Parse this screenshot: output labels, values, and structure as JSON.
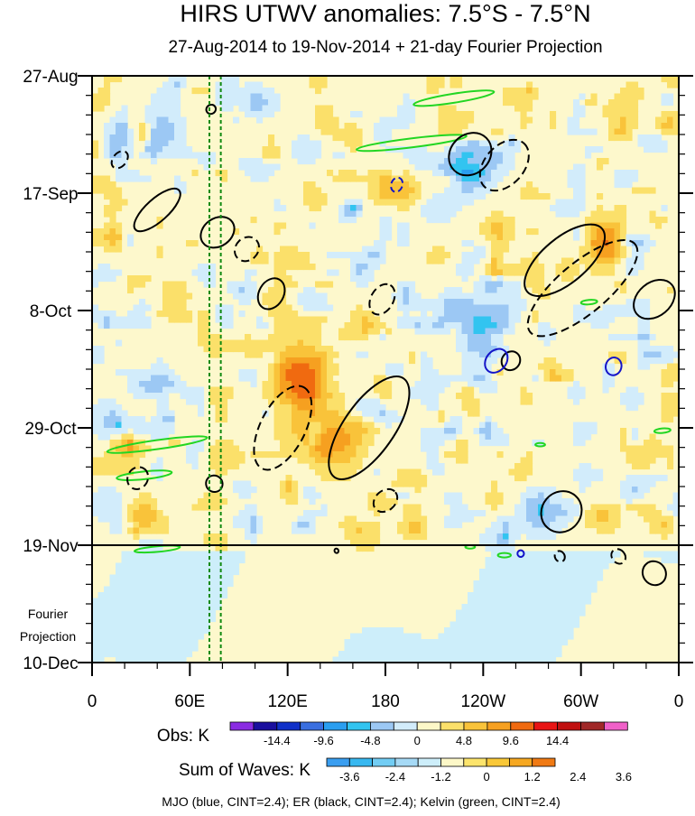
{
  "chart_data": {
    "type": "heatmap",
    "title": "HIRS UTWV anomalies: 7.5°S - 7.5°N",
    "subtitle": "27-Aug-2014 to 19-Nov-2014 + 21-day Fourier Projection",
    "x_axis": {
      "labels": [
        "0",
        "60E",
        "120E",
        "180",
        "120W",
        "60W",
        "0"
      ],
      "longitudes": [
        0,
        60,
        120,
        180,
        240,
        300,
        360
      ],
      "range": [
        0,
        360
      ]
    },
    "y_axis": {
      "labels": [
        "27-Aug",
        "17-Sep",
        "8-Oct",
        "29-Oct",
        "19-Nov",
        "10-Dec"
      ],
      "days": [
        0,
        21,
        42,
        63,
        84,
        105
      ],
      "range": [
        0,
        105
      ],
      "direction": "time increases downward"
    },
    "projection_label": [
      "Fourier",
      "Projection"
    ],
    "projection_start_day": 84,
    "reference_lines_lon": [
      72,
      79
    ],
    "obs_legend": {
      "label": "Obs: K",
      "tick_labels": [
        "-14.4",
        "-9.6",
        "-4.8",
        "0",
        "4.8",
        "9.6",
        "14.4"
      ],
      "colors": [
        "#8a2be2",
        "#1a0f9e",
        "#1030c8",
        "#3a6fe0",
        "#2a9ef0",
        "#32c4f0",
        "#9cc8f4",
        "#d2ecfb",
        "#fdf8c8",
        "#fbe06a",
        "#f9c33a",
        "#f6a020",
        "#f06a10",
        "#e81414",
        "#c01010",
        "#a02828",
        "#f060c8"
      ]
    },
    "waves_legend": {
      "label": "Sum of Waves: K",
      "tick_labels": [
        "-3.6",
        "-2.4",
        "-1.2",
        "0",
        "1.2",
        "2.4",
        "3.6"
      ],
      "colors": [
        "#3a9ef0",
        "#38b8f0",
        "#72cdf4",
        "#a6daf6",
        "#cdeefa",
        "#fdf8c8",
        "#fce46c",
        "#f9c838",
        "#f6a822",
        "#f07a14"
      ]
    },
    "caption": "MJO (blue, CINT=2.4); ER (black, CINT=2.4); Kelvin (green, CINT=2.4)",
    "contours": {
      "er": [
        {
          "lon": 17,
          "day": 15,
          "len": 6,
          "wid": 1.2,
          "ang": -50,
          "sign": -1
        },
        {
          "lon": 40,
          "day": 24,
          "len": 18,
          "wid": 2.0,
          "ang": -42,
          "sign": 1
        },
        {
          "lon": 73,
          "day": 6,
          "len": 3,
          "wid": 0.8,
          "ang": -35,
          "sign": 1
        },
        {
          "lon": 95,
          "day": 31,
          "len": 8,
          "wid": 2.0,
          "ang": -44,
          "sign": -1
        },
        {
          "lon": 77,
          "day": 28,
          "len": 11,
          "wid": 2.5,
          "ang": -35,
          "sign": 1
        },
        {
          "lon": 110,
          "day": 39,
          "len": 10,
          "wid": 2.2,
          "ang": -60,
          "sign": 1
        },
        {
          "lon": 178,
          "day": 40,
          "len": 10,
          "wid": 2.0,
          "ang": -60,
          "sign": -1
        },
        {
          "lon": 117,
          "day": 63,
          "len": 28,
          "wid": 4.0,
          "ang": -63,
          "sign": -1
        },
        {
          "lon": 75,
          "day": 73,
          "len": 5,
          "wid": 1.5,
          "ang": -50,
          "sign": 1
        },
        {
          "lon": 170,
          "day": 63,
          "len": 37,
          "wid": 4.5,
          "ang": -55,
          "sign": 1
        },
        {
          "lon": 28,
          "day": 72,
          "len": 7,
          "wid": 1.8,
          "ang": -60,
          "sign": -1
        },
        {
          "lon": 180,
          "day": 76,
          "len": 8,
          "wid": 1.8,
          "ang": -40,
          "sign": -1
        },
        {
          "lon": 232,
          "day": 14,
          "len": 14,
          "wid": 3.5,
          "ang": -45,
          "sign": 1
        },
        {
          "lon": 253,
          "day": 16,
          "len": 18,
          "wid": 3.5,
          "ang": -48,
          "sign": -1
        },
        {
          "lon": 290,
          "day": 33,
          "len": 30,
          "wid": 4.0,
          "ang": -40,
          "sign": 1
        },
        {
          "lon": 301,
          "day": 38,
          "len": 42,
          "wid": 4.5,
          "ang": -40,
          "sign": -1
        },
        {
          "lon": 257,
          "day": 51,
          "len": 6,
          "wid": 1.6,
          "ang": -48,
          "sign": 1
        },
        {
          "lon": 345,
          "day": 40,
          "len": 14,
          "wid": 3.0,
          "ang": -40,
          "sign": 1
        },
        {
          "lon": 288,
          "day": 78,
          "len": 13,
          "wid": 3.5,
          "ang": -50,
          "sign": 1
        },
        {
          "lon": 287,
          "day": 86,
          "len": 3,
          "wid": 1.0,
          "ang": -30,
          "sign": -1
        },
        {
          "lon": 323,
          "day": 86,
          "len": 4,
          "wid": 1.4,
          "ang": -40,
          "sign": -1
        },
        {
          "lon": 345,
          "day": 89,
          "len": 7,
          "wid": 2.2,
          "ang": -38,
          "sign": 1
        },
        {
          "lon": 150,
          "day": 85,
          "len": 1.2,
          "wid": 0.4,
          "ang": -20,
          "sign": 1
        }
      ],
      "kelvin": [
        {
          "lon": 222,
          "day": 4,
          "len": 25,
          "wid": 0.8,
          "ang": -9
        },
        {
          "lon": 196,
          "day": 12,
          "len": 34,
          "wid": 0.8,
          "ang": -7
        },
        {
          "lon": 40,
          "day": 66,
          "len": 31,
          "wid": 0.8,
          "ang": -8
        },
        {
          "lon": 32,
          "day": 71.5,
          "len": 17,
          "wid": 0.7,
          "ang": -6
        },
        {
          "lon": 305,
          "day": 40.5,
          "len": 5,
          "wid": 0.4,
          "ang": -5
        },
        {
          "lon": 350,
          "day": 63.5,
          "len": 5,
          "wid": 0.4,
          "ang": -5
        },
        {
          "lon": 275,
          "day": 66,
          "len": 3,
          "wid": 0.3,
          "ang": 0
        },
        {
          "lon": 40,
          "day": 84.7,
          "len": 14,
          "wid": 0.5,
          "ang": -5
        },
        {
          "lon": 253,
          "day": 85.8,
          "len": 4,
          "wid": 0.4,
          "ang": 0
        },
        {
          "lon": 232,
          "day": 84.3,
          "len": 3,
          "wid": 0.3,
          "ang": 0
        }
      ],
      "mjo": [
        {
          "lon": 187,
          "day": 19.5,
          "len": 4.5,
          "wid": 1.0,
          "ang": -70,
          "sign": -1
        },
        {
          "lon": 248,
          "day": 51,
          "len": 8,
          "wid": 1.8,
          "ang": -50,
          "sign": 1
        },
        {
          "lon": 320,
          "day": 52,
          "len": 5.5,
          "wid": 1.4,
          "ang": -75,
          "sign": 1
        },
        {
          "lon": 263,
          "day": 85.5,
          "len": 2,
          "wid": 0.6,
          "ang": -15,
          "sign": 1
        }
      ]
    }
  }
}
